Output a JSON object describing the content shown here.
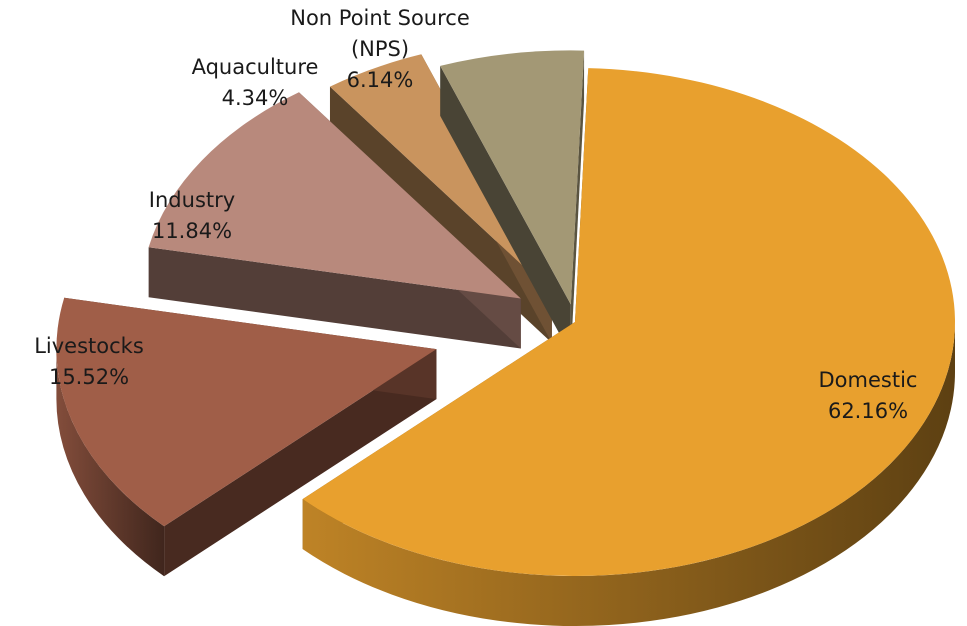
{
  "chart_data": {
    "type": "pie",
    "style": "3d-exploded",
    "title": "",
    "legend": "none",
    "slices": [
      {
        "name": "Domestic",
        "label_lines": [
          "Domestic"
        ],
        "value": 62.16,
        "value_label": "62.16%",
        "color": "#E8A02E"
      },
      {
        "name": "Livestocks",
        "label_lines": [
          "Livestocks"
        ],
        "value": 15.52,
        "value_label": "15.52%",
        "color": "#A05E48"
      },
      {
        "name": "Industry",
        "label_lines": [
          "Industry"
        ],
        "value": 11.84,
        "value_label": "11.84%",
        "color": "#B8897C"
      },
      {
        "name": "Aquaculture",
        "label_lines": [
          "Aquaculture"
        ],
        "value": 4.34,
        "value_label": "4.34%",
        "color": "#C9945E"
      },
      {
        "name": "Non Point Source (NPS)",
        "label_lines": [
          "Non Point Source",
          "(NPS)"
        ],
        "value": 6.14,
        "value_label": "6.14%",
        "color": "#A39875"
      }
    ]
  }
}
